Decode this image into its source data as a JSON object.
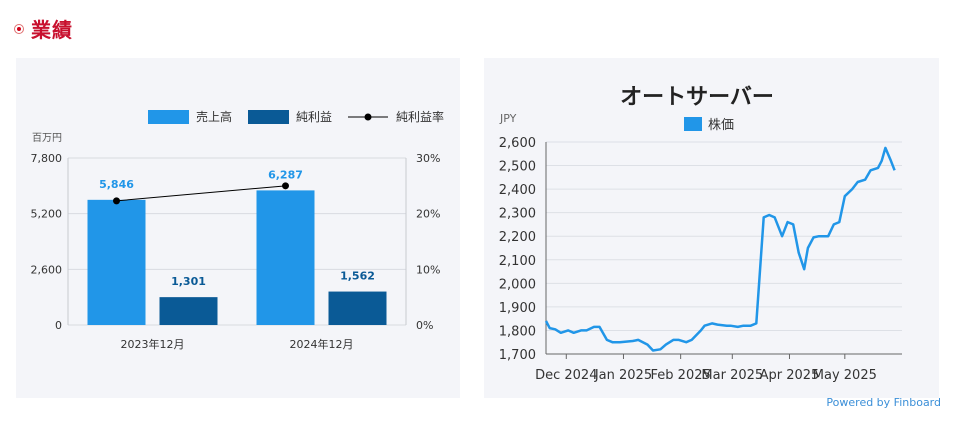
{
  "section": {
    "title": "業績"
  },
  "earnings_chart": {
    "unit_label": "百万円",
    "legend": [
      {
        "name": "売上高",
        "color": "#2196e8",
        "kind": "bar"
      },
      {
        "name": "純利益",
        "color": "#0a5a96",
        "kind": "bar"
      },
      {
        "name": "純利益率",
        "color": "#000000",
        "kind": "line"
      }
    ]
  },
  "stock_chart": {
    "title": "オートサーバー",
    "ylabel": "JPY",
    "legend": [
      {
        "name": "株価",
        "color": "#2196e8"
      }
    ]
  },
  "footer": {
    "powered_by": "Powered by Finboard"
  },
  "chart_data": [
    {
      "type": "bar",
      "categories": [
        "2023年12月",
        "2024年12月"
      ],
      "series": [
        {
          "name": "売上高",
          "values": [
            5846,
            6287
          ],
          "labels": [
            "5,846",
            "6,287"
          ]
        },
        {
          "name": "純利益",
          "values": [
            1301,
            1562
          ],
          "labels": [
            "1,301",
            "1,562"
          ]
        },
        {
          "name": "純利益率",
          "type": "line",
          "axis": "right",
          "values": [
            22.3,
            25.0
          ]
        }
      ],
      "ylim": [
        0,
        7800
      ],
      "yticks": [
        "0",
        "2,600",
        "5,200",
        "7,800"
      ],
      "y2lim": [
        0,
        30
      ],
      "y2ticks": [
        "0%",
        "10%",
        "20%",
        "30%"
      ],
      "legend_position": "top-right",
      "grid": true
    },
    {
      "type": "line",
      "title": "オートサーバー",
      "ylabel": "JPY",
      "ylim": [
        1700,
        2600
      ],
      "yticks": [
        "1,700",
        "1,800",
        "1,900",
        "2,000",
        "2,100",
        "2,200",
        "2,300",
        "2,400",
        "2,500",
        "2,600"
      ],
      "xlim": [
        "2024-11-20",
        "2025-06-01"
      ],
      "xticks": [
        {
          "date": "2024-12-01",
          "label": "Dec 2024"
        },
        {
          "date": "2025-01-01",
          "label": "Jan 2025"
        },
        {
          "date": "2025-02-01",
          "label": "Feb 2025"
        },
        {
          "date": "2025-03-01",
          "label": "Mar 2025"
        },
        {
          "date": "2025-04-01",
          "label": "Apr 2025"
        },
        {
          "date": "2025-05-01",
          "label": "May 2025"
        }
      ],
      "series": [
        {
          "name": "株価",
          "x": [
            "2024-11-20",
            "2024-11-22",
            "2024-11-25",
            "2024-11-28",
            "2024-12-02",
            "2024-12-05",
            "2024-12-09",
            "2024-12-12",
            "2024-12-16",
            "2024-12-19",
            "2024-12-23",
            "2024-12-26",
            "2024-12-30",
            "2025-01-06",
            "2025-01-09",
            "2025-01-14",
            "2025-01-17",
            "2025-01-21",
            "2025-01-24",
            "2025-01-28",
            "2025-01-31",
            "2025-02-04",
            "2025-02-07",
            "2025-02-12",
            "2025-02-14",
            "2025-02-18",
            "2025-02-21",
            "2025-02-26",
            "2025-02-28",
            "2025-03-04",
            "2025-03-07",
            "2025-03-11",
            "2025-03-14",
            "2025-03-18",
            "2025-03-21",
            "2025-03-24",
            "2025-03-26",
            "2025-03-28",
            "2025-03-31",
            "2025-04-03",
            "2025-04-06",
            "2025-04-09",
            "2025-04-11",
            "2025-04-14",
            "2025-04-17",
            "2025-04-22",
            "2025-04-25",
            "2025-04-28",
            "2025-05-01",
            "2025-05-05",
            "2025-05-08",
            "2025-05-12",
            "2025-05-15",
            "2025-05-19",
            "2025-05-21",
            "2025-05-23",
            "2025-05-26",
            "2025-05-28"
          ],
          "y": [
            1840,
            1810,
            1805,
            1790,
            1800,
            1790,
            1800,
            1800,
            1815,
            1815,
            1760,
            1750,
            1750,
            1755,
            1760,
            1740,
            1715,
            1720,
            1740,
            1760,
            1760,
            1750,
            1760,
            1800,
            1820,
            1830,
            1825,
            1820,
            1820,
            1815,
            1820,
            1820,
            1830,
            2280,
            2290,
            2280,
            2240,
            2200,
            2260,
            2250,
            2130,
            2060,
            2150,
            2195,
            2200,
            2200,
            2250,
            2260,
            2370,
            2400,
            2430,
            2440,
            2480,
            2490,
            2520,
            2575,
            2520,
            2480
          ]
        }
      ]
    }
  ]
}
